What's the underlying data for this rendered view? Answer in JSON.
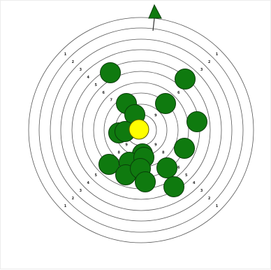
{
  "target": {
    "ring_labels": [
      {
        "ring": "1",
        "text": "1"
      },
      {
        "ring": "2",
        "text": "2"
      },
      {
        "ring": "3",
        "text": "3"
      },
      {
        "ring": "4",
        "text": "4"
      },
      {
        "ring": "5",
        "text": "5"
      },
      {
        "ring": "6",
        "text": "6"
      },
      {
        "ring": "7",
        "text": "7"
      },
      {
        "ring": "8",
        "text": "8"
      },
      {
        "ring": "9",
        "text": "9"
      }
    ]
  },
  "colors": {
    "ring_stroke": "#555555",
    "shot_fill": "#0f7a0f",
    "shot_stroke": "#0a3d0a",
    "highlight_fill": "#ffff00",
    "highlight_stroke": "#5a5a00",
    "arrow_fill": "#0f7a0f",
    "arrow_stroke": "#0a3d0a"
  },
  "icons": {
    "direction": "north-arrow-icon"
  },
  "shots": {
    "count": 20,
    "highlighted_count": 1
  }
}
